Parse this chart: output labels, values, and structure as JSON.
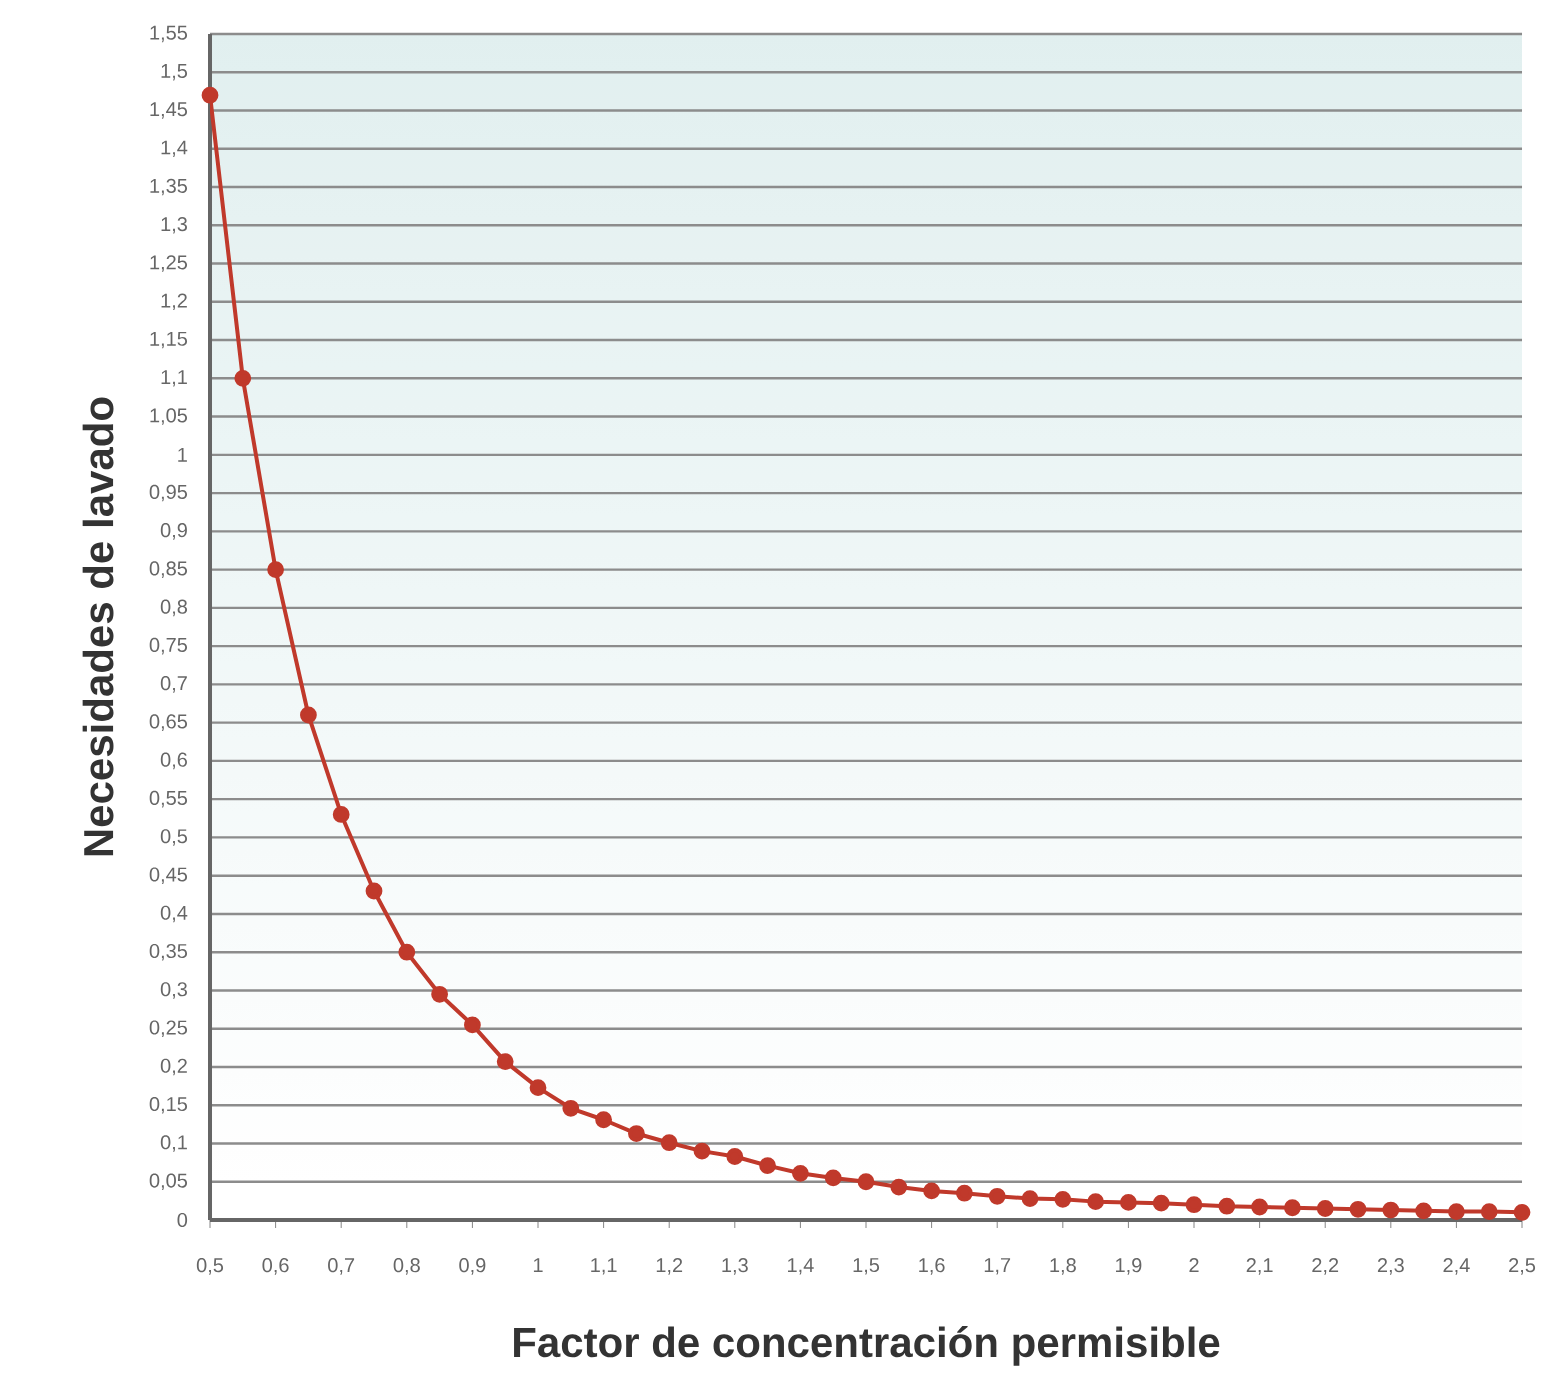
{
  "chart_data": {
    "type": "line",
    "xlabel": "Factor de concentración permisible",
    "ylabel": "Necesidades de lavado",
    "x": [
      0.5,
      0.55,
      0.6,
      0.65,
      0.7,
      0.75,
      0.8,
      0.85,
      0.9,
      0.95,
      1.0,
      1.05,
      1.1,
      1.15,
      1.2,
      1.25,
      1.3,
      1.35,
      1.4,
      1.45,
      1.5,
      1.55,
      1.6,
      1.65,
      1.7,
      1.75,
      1.8,
      1.85,
      1.9,
      1.95,
      2.0,
      2.05,
      2.1,
      2.15,
      2.2,
      2.25,
      2.3,
      2.35,
      2.4,
      2.45,
      2.5
    ],
    "series": [
      {
        "color": "#c0392b",
        "values": [
          1.47,
          1.1,
          0.85,
          0.66,
          0.53,
          0.43,
          0.35,
          0.295,
          0.255,
          0.207,
          0.173,
          0.146,
          0.131,
          0.113,
          0.101,
          0.09,
          0.083,
          0.071,
          0.061,
          0.055,
          0.05,
          0.043,
          0.038,
          0.035,
          0.031,
          0.028,
          0.027,
          0.024,
          0.023,
          0.022,
          0.02,
          0.018,
          0.017,
          0.016,
          0.015,
          0.014,
          0.013,
          0.012,
          0.011,
          0.011,
          0.01
        ]
      }
    ],
    "xlim": [
      0.5,
      2.5
    ],
    "ylim": [
      0,
      1.55
    ],
    "xticks": [
      {
        "value": 0.5,
        "label": "0,5"
      },
      {
        "value": 0.6,
        "label": "0,6"
      },
      {
        "value": 0.7,
        "label": "0,7"
      },
      {
        "value": 0.8,
        "label": "0,8"
      },
      {
        "value": 0.9,
        "label": "0,9"
      },
      1,
      {
        "value": 1.1,
        "label": "1,1"
      },
      {
        "value": 1.2,
        "label": "1,2"
      },
      {
        "value": 1.3,
        "label": "1,3"
      },
      {
        "value": 1.4,
        "label": "1,4"
      },
      {
        "value": 1.5,
        "label": "1,5"
      },
      {
        "value": 1.6,
        "label": "1,6"
      },
      {
        "value": 1.7,
        "label": "1,7"
      },
      {
        "value": 1.8,
        "label": "1,8"
      },
      {
        "value": 1.9,
        "label": "1,9"
      },
      2,
      {
        "value": 2.1,
        "label": "2,1"
      },
      {
        "value": 2.2,
        "label": "2,2"
      },
      {
        "value": 2.3,
        "label": "2,3"
      },
      {
        "value": 2.4,
        "label": "2,4"
      },
      {
        "value": 2.5,
        "label": "2,5"
      }
    ],
    "yticks": [
      0,
      {
        "value": 0.05,
        "label": "0,05"
      },
      {
        "value": 0.1,
        "label": "0,1"
      },
      {
        "value": 0.15,
        "label": "0,15"
      },
      {
        "value": 0.2,
        "label": "0,2"
      },
      {
        "value": 0.25,
        "label": "0,25"
      },
      {
        "value": 0.3,
        "label": "0,3"
      },
      {
        "value": 0.35,
        "label": "0,35"
      },
      {
        "value": 0.4,
        "label": "0,4"
      },
      {
        "value": 0.45,
        "label": "0,45"
      },
      {
        "value": 0.5,
        "label": "0,5"
      },
      {
        "value": 0.55,
        "label": "0,55"
      },
      {
        "value": 0.6,
        "label": "0,6"
      },
      {
        "value": 0.65,
        "label": "0,65"
      },
      {
        "value": 0.7,
        "label": "0,7"
      },
      {
        "value": 0.75,
        "label": "0,75"
      },
      {
        "value": 0.8,
        "label": "0,8"
      },
      {
        "value": 0.85,
        "label": "0,85"
      },
      {
        "value": 0.9,
        "label": "0,9"
      },
      {
        "value": 0.95,
        "label": "0,95"
      },
      1,
      {
        "value": 1.05,
        "label": "1,05"
      },
      {
        "value": 1.1,
        "label": "1,1"
      },
      {
        "value": 1.15,
        "label": "1,15"
      },
      {
        "value": 1.2,
        "label": "1,2"
      },
      {
        "value": 1.25,
        "label": "1,25"
      },
      {
        "value": 1.3,
        "label": "1,3"
      },
      {
        "value": 1.35,
        "label": "1,35"
      },
      {
        "value": 1.4,
        "label": "1,4"
      },
      {
        "value": 1.45,
        "label": "1,45"
      },
      {
        "value": 1.5,
        "label": "1,5"
      },
      {
        "value": 1.55,
        "label": "1,55"
      }
    ],
    "grid": "y",
    "marker": "circle",
    "line_style": "solid"
  }
}
